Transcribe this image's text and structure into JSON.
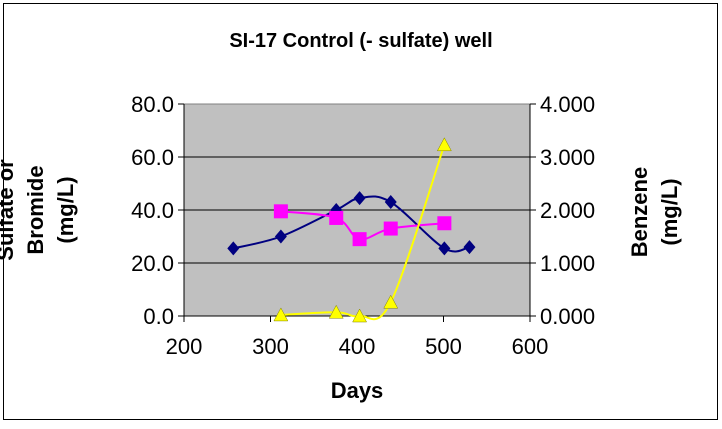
{
  "chart_data": {
    "type": "line",
    "title": "SI-17 Control (- sulfate) well",
    "xlabel": "Days",
    "ylabel_lines": [
      "Sulfate or",
      "Bromide",
      "(mg/L)"
    ],
    "y2label_lines": [
      "Benzene",
      "(mg/L)"
    ],
    "xlim": [
      200,
      600
    ],
    "ylim": [
      0,
      80
    ],
    "y2lim": [
      0,
      4
    ],
    "x_ticks": [
      "200",
      "300",
      "400",
      "500",
      "600"
    ],
    "y_ticks": [
      "0.0",
      "20.0",
      "40.0",
      "60.0",
      "80.0"
    ],
    "y2_ticks": [
      "0.000",
      "1.000",
      "2.000",
      "3.000",
      "4.000"
    ],
    "grid": true,
    "plot_background": "#C0C0C0",
    "series": [
      {
        "name": "Sulfate",
        "axis": "left",
        "color": "#000080",
        "marker": "diamond",
        "x": [
          257,
          312,
          376,
          403,
          439,
          501,
          530
        ],
        "y": [
          25.5,
          30,
          40,
          44.5,
          43,
          25.5,
          26
        ]
      },
      {
        "name": "Bromide",
        "axis": "left",
        "color": "#FF00FF",
        "marker": "square",
        "x": [
          312,
          376,
          403,
          439,
          501
        ],
        "y": [
          39.5,
          37,
          29,
          33,
          35
        ]
      },
      {
        "name": "Benzene",
        "axis": "right",
        "color": "#FFFF00",
        "marker": "triangle",
        "x": [
          312,
          376,
          403,
          439,
          501
        ],
        "y": [
          0.02,
          0.07,
          0.0,
          0.26,
          3.23
        ]
      }
    ]
  }
}
